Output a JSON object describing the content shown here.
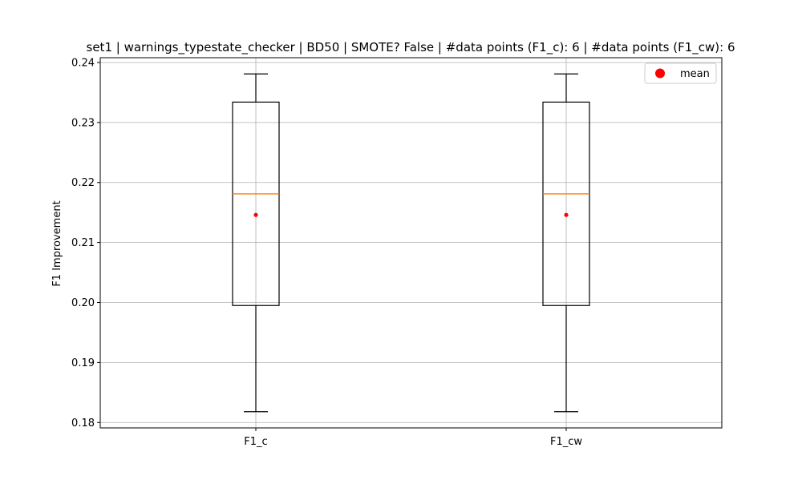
{
  "chart_data": {
    "type": "box",
    "title": "set1 | warnings_typestate_checker | BD50 | SMOTE? False | #data points (F1_c): 6 | #data points (F1_cw): 6",
    "xlabel": "",
    "ylabel": "F1 Improvement",
    "ylim": [
      0.1791,
      0.2408
    ],
    "yticks": [
      0.18,
      0.19,
      0.2,
      0.21,
      0.22,
      0.23,
      0.24
    ],
    "ytick_labels": [
      "0.18",
      "0.19",
      "0.20",
      "0.21",
      "0.22",
      "0.23",
      "0.24"
    ],
    "categories": [
      "F1_c",
      "F1_cw"
    ],
    "boxes": [
      {
        "label": "F1_c",
        "whisker_low": 0.1818,
        "q1": 0.1995,
        "median": 0.2181,
        "q3": 0.2334,
        "whisker_high": 0.2381,
        "mean": 0.2146
      },
      {
        "label": "F1_cw",
        "whisker_low": 0.1818,
        "q1": 0.1995,
        "median": 0.2181,
        "q3": 0.2334,
        "whisker_high": 0.2381,
        "mean": 0.2146
      }
    ],
    "legend": {
      "position": "top-right",
      "entries": [
        {
          "label": "mean",
          "color": "#ff0000",
          "marker": "circle"
        }
      ]
    },
    "grid": true,
    "colors": {
      "box": "#000000",
      "median": "#ff7f0e",
      "mean": "#ff0000",
      "grid": "#b0b0b0"
    }
  }
}
